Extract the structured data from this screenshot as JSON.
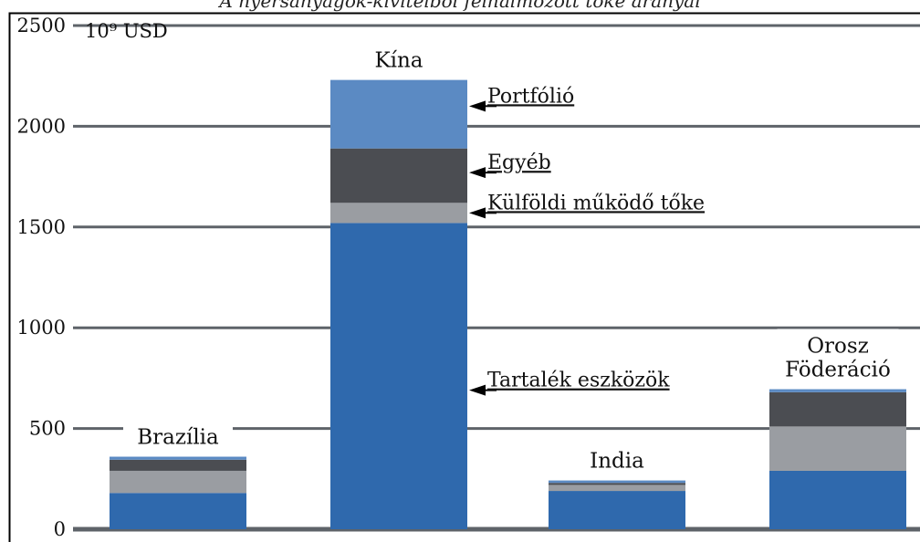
{
  "chart_data": {
    "type": "bar",
    "stacked": true,
    "title": "A nyersanyagok-kivitelből felhalmozott tőke arányai",
    "unit_label": "10⁹ USD",
    "ylim": [
      0,
      2500
    ],
    "yticks": [
      0,
      500,
      1000,
      1500,
      2000,
      2500
    ],
    "grid": true,
    "categories": [
      {
        "label": "Brazília",
        "lines": [
          "Brazília"
        ]
      },
      {
        "label": "Kína",
        "lines": [
          "Kína"
        ]
      },
      {
        "label": "India",
        "lines": [
          "India"
        ]
      },
      {
        "label": "Orosz Föderáció",
        "lines": [
          "Orosz",
          "Föderáció"
        ]
      }
    ],
    "series": [
      {
        "name": "Tartalék eszközök",
        "color": "#2f69ad",
        "values": [
          180,
          1520,
          190,
          290
        ]
      },
      {
        "name": "Külföldi működő tőke",
        "color": "#9a9da2",
        "values": [
          110,
          100,
          30,
          220
        ]
      },
      {
        "name": "Egyéb",
        "color": "#4b4d52",
        "values": [
          55,
          270,
          10,
          170
        ]
      },
      {
        "name": "Portfólió",
        "color": "#5b8ac3",
        "values": [
          15,
          340,
          12,
          15
        ]
      }
    ],
    "annotations": [
      {
        "text": "Portfólió",
        "value": 2100
      },
      {
        "text": "Egyéb",
        "value": 1770
      },
      {
        "text": "Külföldi működő tőke",
        "value": 1570
      },
      {
        "text": "Tartalék eszközök",
        "value": 690
      }
    ]
  }
}
